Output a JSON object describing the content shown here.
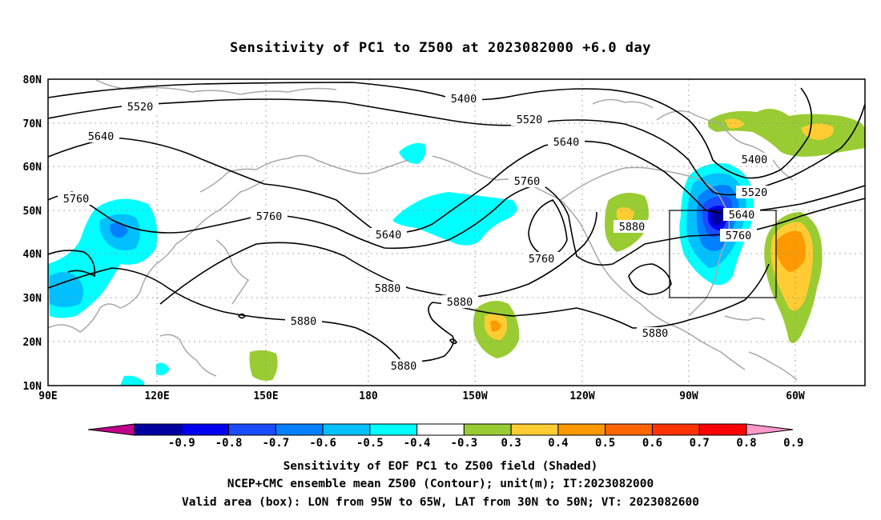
{
  "title": "Sensitivity of PC1 to Z500 at 2023082000 +6.0 day",
  "axes": {
    "lat_labels": [
      "80N",
      "70N",
      "60N",
      "50N",
      "40N",
      "30N",
      "20N",
      "10N"
    ],
    "lon_labels": [
      "90E",
      "120E",
      "150E",
      "180",
      "150W",
      "120W",
      "90W",
      "60W"
    ]
  },
  "contour_labels": [
    {
      "text": "5520"
    },
    {
      "text": "5400"
    },
    {
      "text": "5520"
    },
    {
      "text": "5640"
    },
    {
      "text": "5640"
    },
    {
      "text": "5760"
    },
    {
      "text": "5760"
    },
    {
      "text": "5640"
    },
    {
      "text": "5760"
    },
    {
      "text": "5880"
    },
    {
      "text": "5760"
    },
    {
      "text": "5880"
    },
    {
      "text": "5880"
    },
    {
      "text": "5880"
    },
    {
      "text": "5880"
    },
    {
      "text": "5400"
    },
    {
      "text": "5520"
    },
    {
      "text": "5640"
    },
    {
      "text": "5760"
    }
  ],
  "colorbar": {
    "labels": [
      "-0.9",
      "-0.8",
      "-0.7",
      "-0.6",
      "-0.5",
      "-0.4",
      "-0.3",
      "0.3",
      "0.4",
      "0.5",
      "0.6",
      "0.7",
      "0.8",
      "0.9"
    ],
    "colors": [
      "#c0008a",
      "#0000a0",
      "#0000f0",
      "#1a4cff",
      "#0080ff",
      "#00c0ff",
      "#00ffff",
      "#ffffff",
      "#99cc33",
      "#ffcc33",
      "#ff9900",
      "#ff6600",
      "#ff3300",
      "#ff0000",
      "#ff99cc"
    ]
  },
  "captions": {
    "line1": "Sensitivity of EOF PC1 to Z500 field (Shaded)",
    "line2": "NCEP+CMC ensemble mean Z500 (Contour); unit(m); IT:2023082000",
    "line3": "Valid area (box): LON from 95W to 65W, LAT from 30N to 50N; VT: 2023082600"
  },
  "valid_box": {
    "lon_west": "95W",
    "lon_east": "65W",
    "lat_south": "30N",
    "lat_north": "50N"
  }
}
